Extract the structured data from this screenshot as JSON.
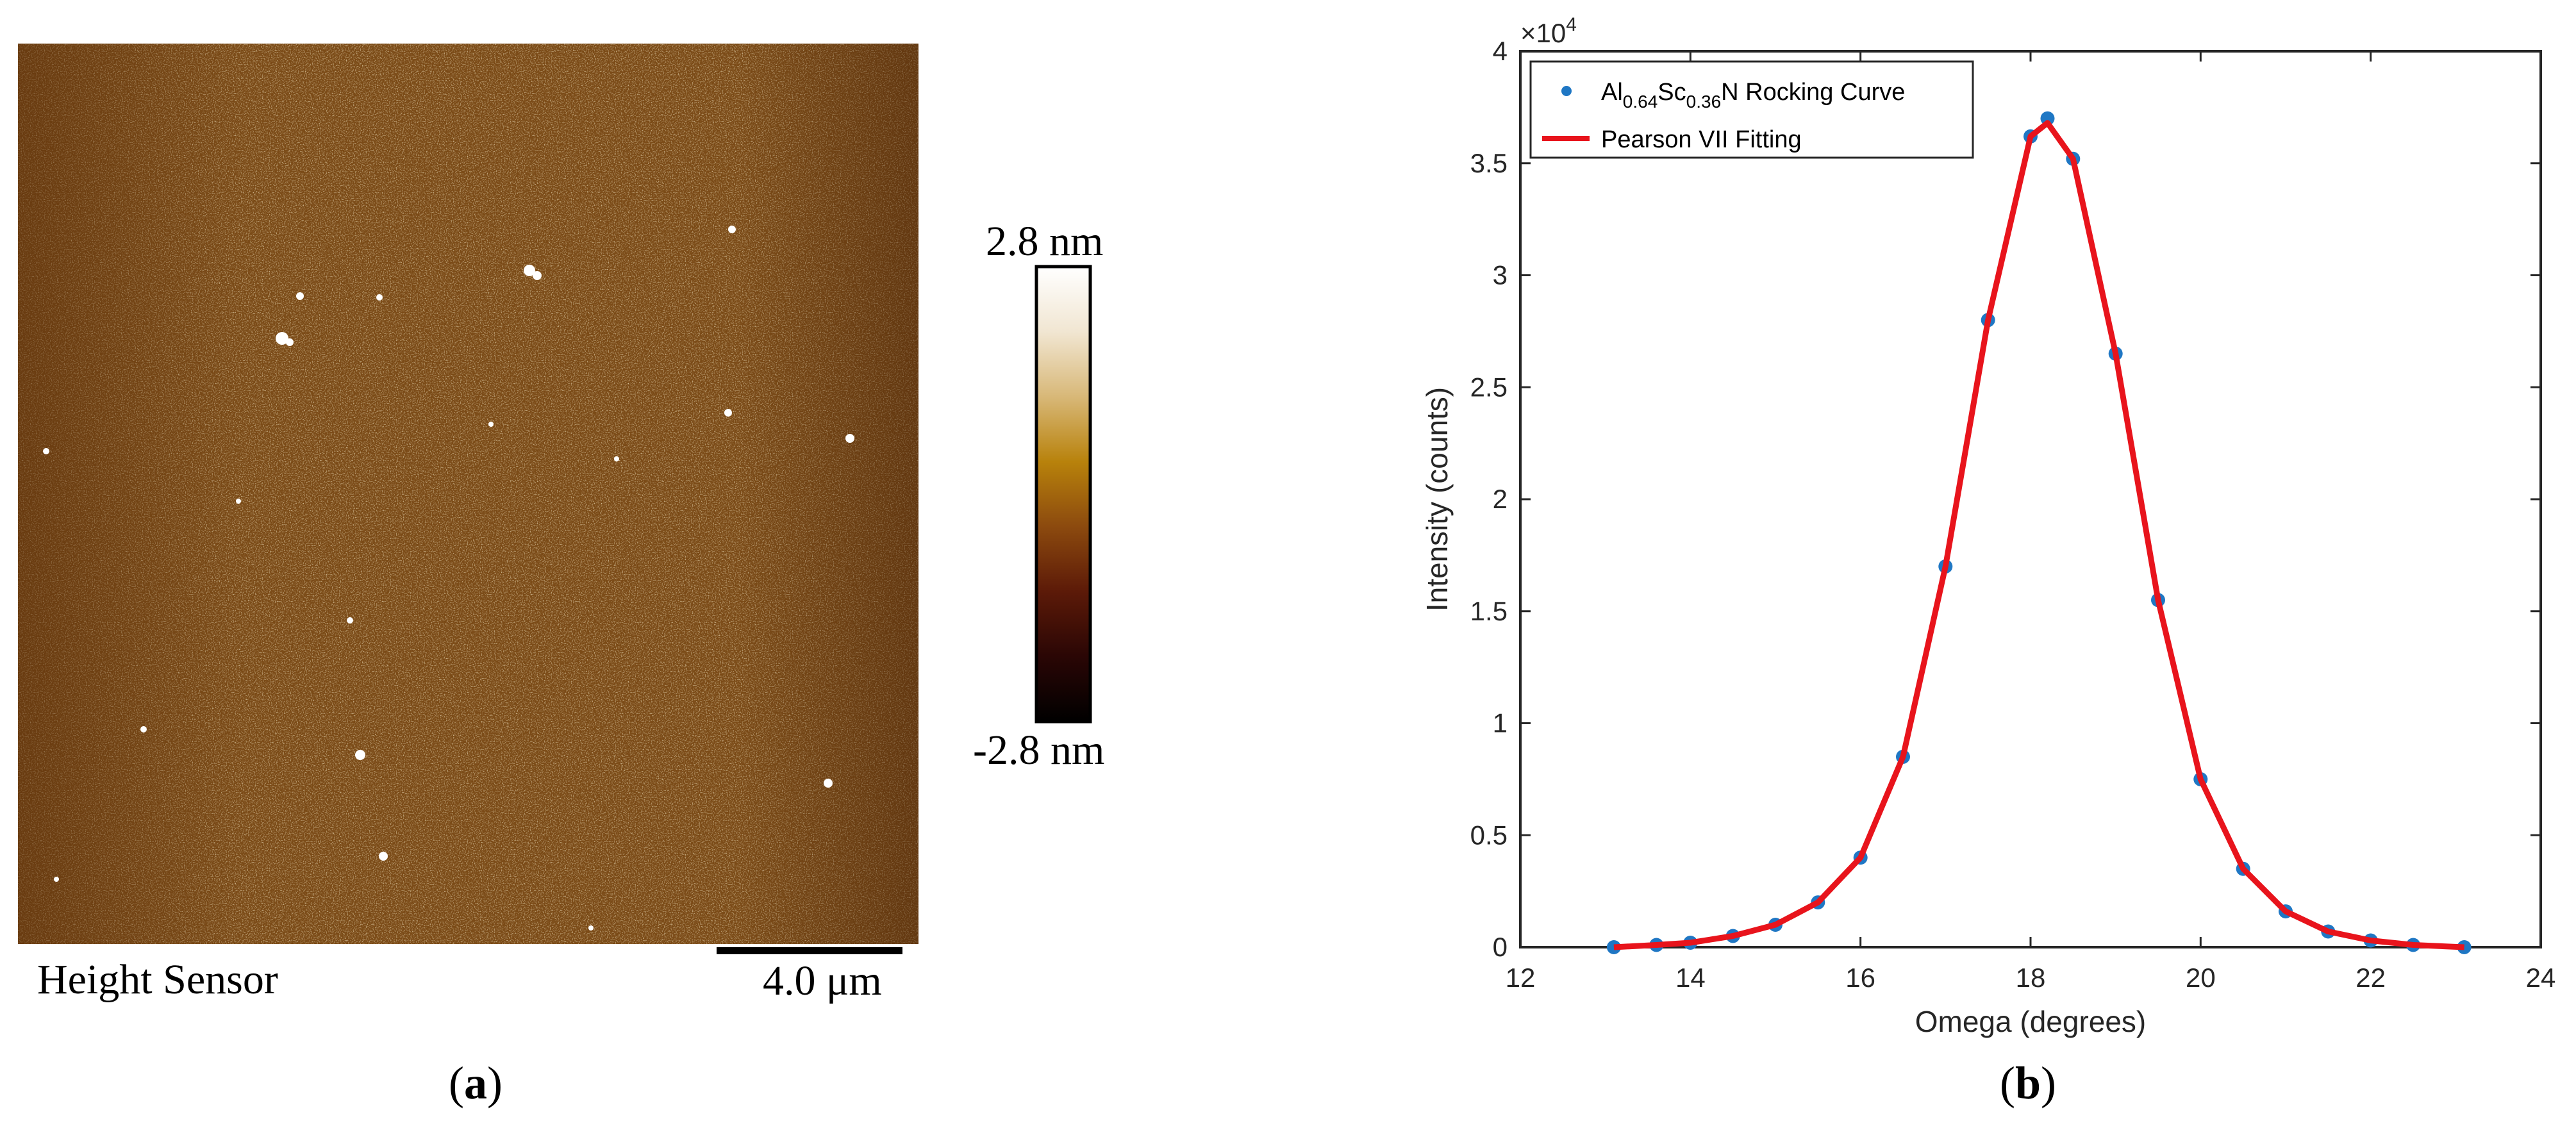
{
  "panel_a": {
    "label_open": "(",
    "label_letter": "a",
    "label_close": ")",
    "image_caption": "Height Sensor",
    "scale_bar_label": "4.0 μm",
    "colorbar_max_label": "2.8 nm",
    "colorbar_min_label": "-2.8 nm",
    "colormap": [
      "#000000",
      "#2a0605",
      "#5c1a08",
      "#8c4a0e",
      "#b8820c",
      "#d8b878",
      "#f1e6d2",
      "#ffffff"
    ],
    "surface_base_color": "#7a4a16",
    "icon": "afm-height-map"
  },
  "panel_b": {
    "label_open": "(",
    "label_letter": "b",
    "label_close": ")",
    "chart_data": {
      "type": "scatter",
      "xlabel": "Omega (degrees)",
      "ylabel": "Intensity (counts)",
      "xlim": [
        12,
        24
      ],
      "ylim": [
        0,
        40000
      ],
      "x_ticks": [
        12,
        14,
        16,
        18,
        20,
        22,
        24
      ],
      "y_ticks": [
        0,
        0.5,
        1,
        1.5,
        2,
        2.5,
        3,
        3.5,
        4
      ],
      "y_tick_labels": [
        "0",
        "0.5",
        "1",
        "1.5",
        "2",
        "2.5",
        "3",
        "3.5",
        "4"
      ],
      "y_multiplier": "×10",
      "y_multiplier_exponent": "4",
      "grid": false,
      "legend_position": "top-left",
      "series": [
        {
          "name": "Al0.64Sc0.36N Rocking Curve",
          "name_parts": [
            "Al",
            "0.64",
            "Sc",
            "0.36",
            "N Rocking Curve"
          ],
          "kind": "points",
          "color": "#1f77c4",
          "x": [
            13.1,
            13.6,
            14.0,
            14.5,
            15.0,
            15.5,
            16.0,
            16.5,
            17.0,
            17.5,
            18.0,
            18.2,
            18.5,
            19.0,
            19.5,
            20.0,
            20.5,
            21.0,
            21.5,
            22.0,
            22.5,
            23.1
          ],
          "y": [
            0,
            100,
            200,
            500,
            1000,
            2000,
            4000,
            8500,
            17000,
            28000,
            36200,
            37000,
            35200,
            26500,
            15500,
            7500,
            3500,
            1600,
            700,
            300,
            100,
            0
          ]
        },
        {
          "name": "Pearson VII Fitting",
          "kind": "line",
          "color": "#e8141c",
          "x": [
            13.1,
            13.6,
            14.0,
            14.5,
            15.0,
            15.5,
            16.0,
            16.5,
            17.0,
            17.5,
            18.0,
            18.2,
            18.5,
            19.0,
            19.5,
            20.0,
            20.5,
            21.0,
            21.5,
            22.0,
            22.5,
            23.1
          ],
          "y": [
            0,
            100,
            200,
            500,
            1000,
            2000,
            4000,
            8500,
            17000,
            28000,
            36200,
            36800,
            35200,
            26500,
            15500,
            7500,
            3500,
            1600,
            700,
            300,
            100,
            0
          ]
        }
      ]
    }
  }
}
